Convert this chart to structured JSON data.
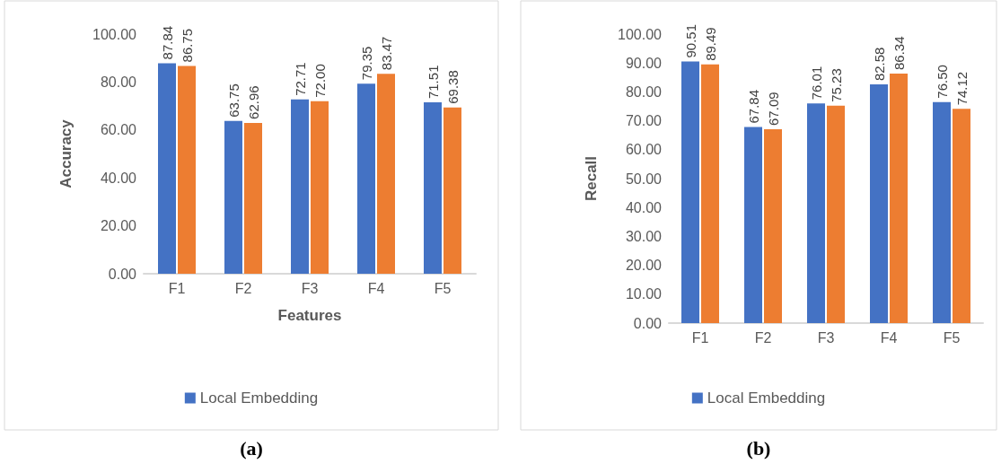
{
  "chart_data": [
    {
      "type": "bar",
      "title": "(a)",
      "xlabel": "Features",
      "ylabel": "Accuracy",
      "categories": [
        "F1",
        "F2",
        "F3",
        "F4",
        "F5"
      ],
      "series": [
        {
          "name": "Local Embedding",
          "color": "#4472c4",
          "values": [
            87.84,
            63.75,
            72.71,
            79.35,
            71.51
          ],
          "value_labels": [
            "87.84",
            "63.75",
            "72.71",
            "79.35",
            "71.51"
          ]
        },
        {
          "color": "#ed7d31",
          "values": [
            86.75,
            62.96,
            72.0,
            83.47,
            69.38
          ],
          "value_labels": [
            "86.75",
            "62.96",
            "72.00",
            "83.47",
            "69.38"
          ]
        }
      ],
      "ylim": [
        0,
        100
      ],
      "yticks": [
        {
          "value": 0,
          "label": "0.00"
        },
        {
          "value": 20,
          "label": "20.00"
        },
        {
          "value": 40,
          "label": "40.00"
        },
        {
          "value": 60,
          "label": "60.00"
        },
        {
          "value": 80,
          "label": "80.00"
        },
        {
          "value": 100,
          "label": "100.00"
        }
      ],
      "grid": false,
      "legend": "bottom"
    },
    {
      "type": "bar",
      "title": "(b)",
      "ylabel": "Recall",
      "categories": [
        "F1",
        "F2",
        "F3",
        "F4",
        "F5"
      ],
      "series": [
        {
          "name": "Local Embedding",
          "color": "#4472c4",
          "values": [
            90.51,
            67.84,
            76.01,
            82.58,
            76.5
          ],
          "value_labels": [
            "90.51",
            "67.84",
            "76.01",
            "82.58",
            "76.50"
          ]
        },
        {
          "color": "#ed7d31",
          "values": [
            89.49,
            67.09,
            75.23,
            86.34,
            74.12
          ],
          "value_labels": [
            "89.49",
            "67.09",
            "75.23",
            "86.34",
            "74.12"
          ]
        }
      ],
      "ylim": [
        0,
        100
      ],
      "yticks": [
        {
          "value": 0,
          "label": "0.00"
        },
        {
          "value": 10,
          "label": "10.00"
        },
        {
          "value": 20,
          "label": "20.00"
        },
        {
          "value": 30,
          "label": "30.00"
        },
        {
          "value": 40,
          "label": "40.00"
        },
        {
          "value": 50,
          "label": "50.00"
        },
        {
          "value": 60,
          "label": "60.00"
        },
        {
          "value": 70,
          "label": "70.00"
        },
        {
          "value": 80,
          "label": "80.00"
        },
        {
          "value": 90,
          "label": "90.00"
        },
        {
          "value": 100,
          "label": "100.00"
        }
      ],
      "grid": false,
      "legend": "bottom"
    }
  ]
}
